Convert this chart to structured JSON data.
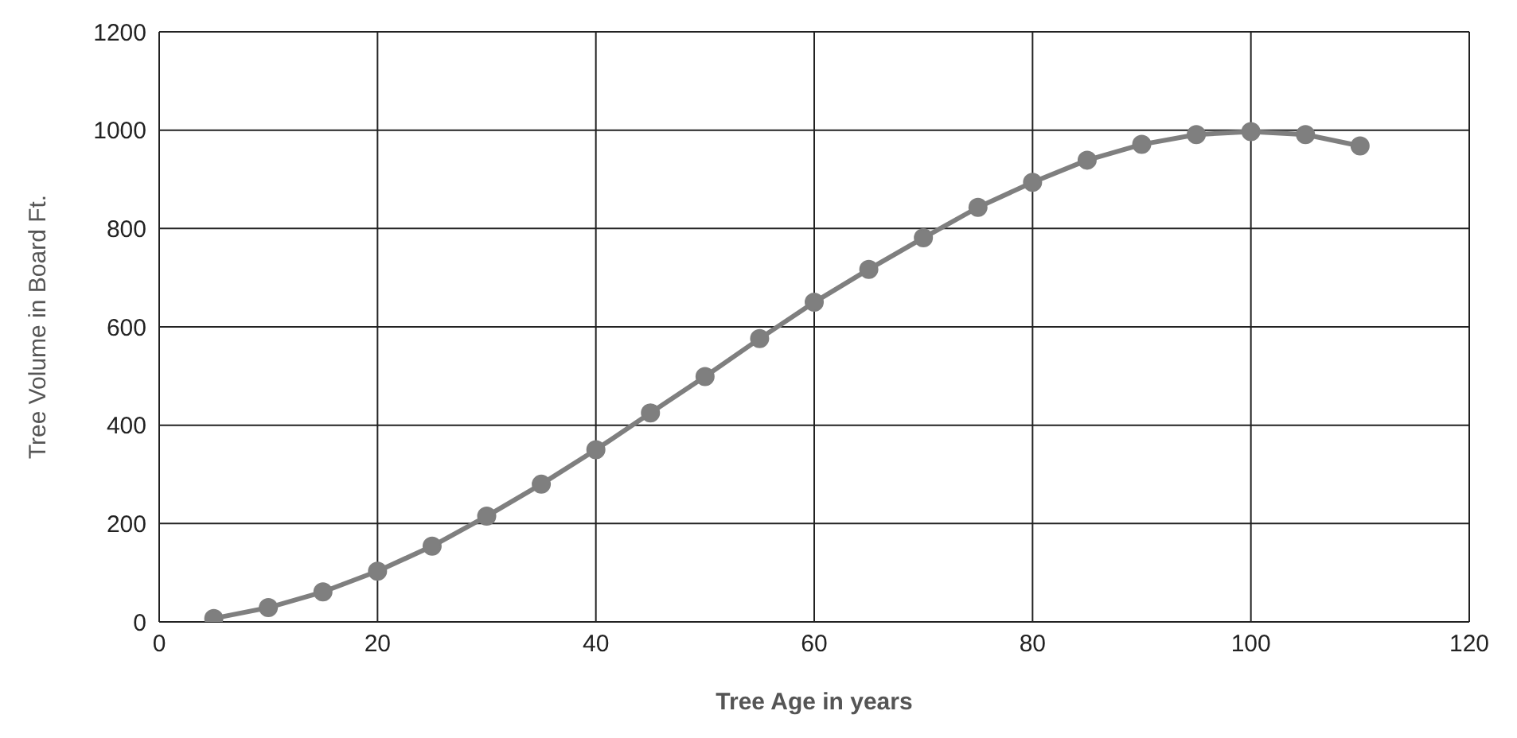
{
  "chart_data": {
    "type": "line",
    "xlabel": "Tree Age in years",
    "ylabel": "Tree Volume in Board Ft.",
    "x": [
      5,
      10,
      15,
      20,
      25,
      30,
      35,
      40,
      45,
      50,
      55,
      60,
      65,
      70,
      75,
      80,
      85,
      90,
      95,
      100,
      105,
      110
    ],
    "series": [
      {
        "color": "#7f7f7f",
        "values": [
          7,
          29,
          61,
          103,
          154,
          215,
          280,
          350,
          425,
          499,
          576,
          650,
          717,
          781,
          843,
          894,
          939,
          971,
          991,
          997,
          991,
          968
        ]
      }
    ],
    "xlim": [
      0,
      120
    ],
    "xticks": [
      0,
      20,
      40,
      60,
      80,
      100,
      120
    ],
    "ylim": [
      0,
      1200
    ],
    "yticks": [
      0,
      200,
      400,
      600,
      800,
      1000,
      1200
    ],
    "grid": true,
    "marker": "circle",
    "line_style": "solid"
  }
}
